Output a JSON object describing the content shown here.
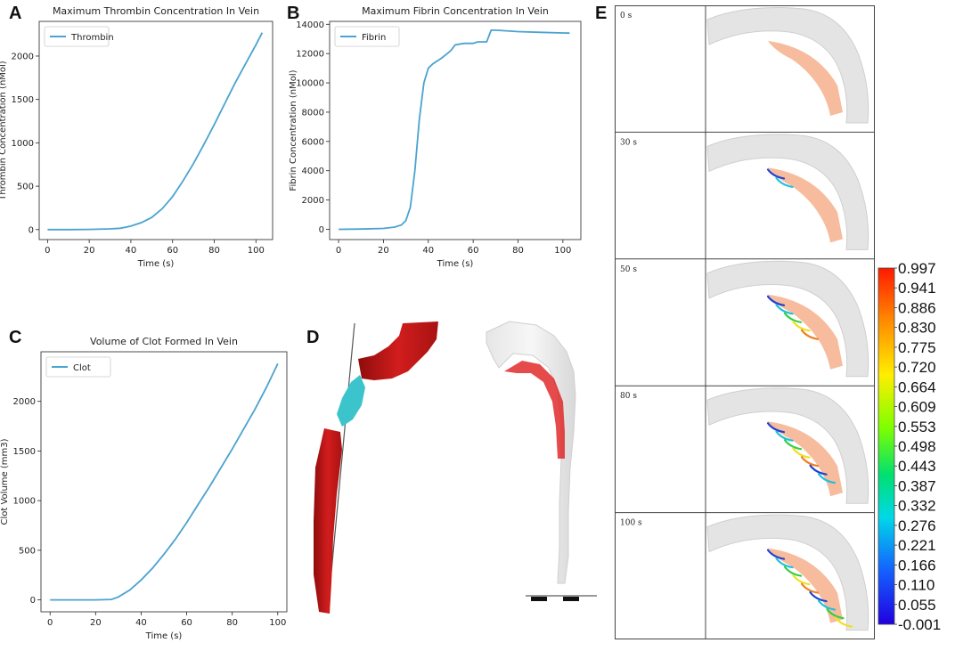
{
  "panels": {
    "A": "A",
    "B": "B",
    "C": "C",
    "D": "D",
    "E": "E"
  },
  "colors": {
    "line": "#4aa3d0",
    "clot_red": "#d21d1d",
    "clot_cyan": "#3cc4cc",
    "tissue": "#f4b08c"
  },
  "chart_data": [
    {
      "id": "A",
      "type": "line",
      "title": "Maximum Thrombin Concentration In Vein",
      "xlabel": "Time (s)",
      "ylabel": "Thrombin Concentration (nMol)",
      "xlim": [
        -4,
        108
      ],
      "ylim": [
        -115,
        2400
      ],
      "xticks": [
        0,
        20,
        40,
        60,
        80,
        100
      ],
      "yticks": [
        0,
        500,
        1000,
        1500,
        2000
      ],
      "legend": "upper-left",
      "series": [
        {
          "name": "Thrombin",
          "x": [
            0,
            10,
            20,
            30,
            35,
            40,
            45,
            50,
            55,
            60,
            65,
            70,
            75,
            80,
            85,
            90,
            95,
            100,
            103
          ],
          "y": [
            0,
            0,
            2,
            8,
            15,
            40,
            80,
            140,
            240,
            380,
            560,
            760,
            980,
            1210,
            1450,
            1690,
            1910,
            2130,
            2270
          ]
        }
      ]
    },
    {
      "id": "B",
      "type": "line",
      "title": "Maximum Fibrin Concentration In Vein",
      "xlabel": "Time (s)",
      "ylabel": "Fibrin Concentration (nMol)",
      "xlim": [
        -4,
        108
      ],
      "ylim": [
        -700,
        14200
      ],
      "xticks": [
        0,
        20,
        40,
        60,
        80,
        100
      ],
      "yticks": [
        0,
        2000,
        4000,
        6000,
        8000,
        10000,
        12000,
        14000
      ],
      "legend": "upper-left",
      "series": [
        {
          "name": "Fibrin",
          "x": [
            0,
            10,
            20,
            25,
            28,
            30,
            32,
            34,
            36,
            38,
            40,
            42,
            46,
            50,
            52,
            56,
            60,
            62,
            66,
            68,
            70,
            80,
            90,
            103
          ],
          "y": [
            0,
            20,
            60,
            150,
            300,
            600,
            1500,
            4000,
            7500,
            10000,
            11000,
            11300,
            11700,
            12200,
            12600,
            12700,
            12700,
            12800,
            12800,
            13600,
            13600,
            13500,
            13450,
            13400
          ]
        }
      ]
    },
    {
      "id": "C",
      "type": "line",
      "title": "Volume of Clot Formed In Vein",
      "xlabel": "Time (s)",
      "ylabel": "Clot Volume (mm3)",
      "xlim": [
        -4,
        104
      ],
      "ylim": [
        -120,
        2500
      ],
      "xticks": [
        0,
        20,
        40,
        60,
        80,
        100
      ],
      "yticks": [
        0,
        500,
        1000,
        1500,
        2000
      ],
      "legend": "upper-left",
      "series": [
        {
          "name": "Clot",
          "x": [
            0,
            10,
            20,
            27,
            30,
            35,
            40,
            45,
            50,
            55,
            60,
            65,
            70,
            75,
            80,
            85,
            90,
            95,
            100
          ],
          "y": [
            0,
            0,
            0,
            5,
            30,
            100,
            200,
            320,
            460,
            610,
            780,
            960,
            1140,
            1330,
            1520,
            1720,
            1920,
            2140,
            2380
          ]
        }
      ]
    }
  ],
  "panel_e": {
    "times": [
      "0 s",
      "30 s",
      "50 s",
      "80 s",
      "100 s"
    ],
    "progress": [
      0.0,
      0.2,
      0.55,
      0.8,
      0.95
    ],
    "colorbar_ticks": [
      "0.997",
      "0.941",
      "0.886",
      "0.830",
      "0.775",
      "0.720",
      "0.664",
      "0.609",
      "0.553",
      "0.498",
      "0.443",
      "0.387",
      "0.332",
      "0.276",
      "0.221",
      "0.166",
      "0.110",
      "0.055",
      "-0.001"
    ]
  }
}
